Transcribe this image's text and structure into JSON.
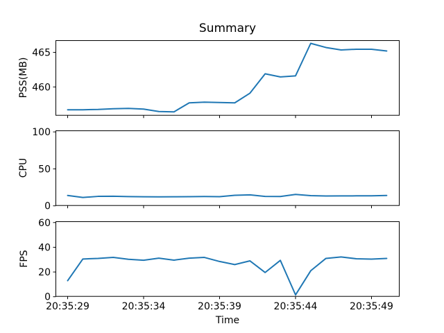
{
  "title": "Summary",
  "line_color": "#1f77b4",
  "background_color": "#ffffff",
  "spine_color": "#000000",
  "x": {
    "label": "Time",
    "tick_seconds": [
      29,
      34,
      39,
      44,
      49
    ],
    "tick_labels": [
      "20:35:29",
      "20:35:34",
      "20:35:39",
      "20:35:44",
      "20:35:49"
    ],
    "xlim": [
      28.2,
      50.85
    ]
  },
  "chart_data": [
    {
      "type": "line",
      "name": "PSS",
      "ylabel": "PSS(MB)",
      "yticks": [
        460,
        465
      ],
      "ylim": [
        455.85,
        466.75
      ],
      "grid": false,
      "legend": "none",
      "x_seconds": [
        29,
        30,
        31,
        32,
        33,
        34,
        35,
        36,
        37,
        38,
        39,
        40,
        41,
        42,
        43,
        44,
        45,
        46,
        47,
        48,
        49,
        50
      ],
      "values": [
        456.7,
        456.7,
        456.75,
        456.85,
        456.9,
        456.8,
        456.45,
        456.4,
        457.7,
        457.8,
        457.75,
        457.7,
        459.1,
        461.9,
        461.45,
        461.6,
        466.3,
        465.7,
        465.35,
        465.45,
        465.45,
        465.2
      ]
    },
    {
      "type": "line",
      "name": "CPU",
      "ylabel": "CPU",
      "yticks": [
        0,
        50,
        100
      ],
      "ylim": [
        0,
        102
      ],
      "grid": false,
      "legend": "none",
      "x_seconds": [
        29,
        30,
        31,
        32,
        33,
        34,
        35,
        36,
        37,
        38,
        39,
        40,
        41,
        42,
        43,
        44,
        45,
        46,
        47,
        48,
        49,
        50
      ],
      "values": [
        14.0,
        11.3,
        12.8,
        13.0,
        12.5,
        12.3,
        12.2,
        12.3,
        12.4,
        12.6,
        12.4,
        14.3,
        14.9,
        12.7,
        12.6,
        15.4,
        13.8,
        13.3,
        13.4,
        13.5,
        13.6,
        14.0
      ]
    },
    {
      "type": "line",
      "name": "FPS",
      "ylabel": "FPS",
      "yticks": [
        0,
        20,
        40,
        60
      ],
      "ylim": [
        0,
        61
      ],
      "grid": false,
      "legend": "none",
      "x_seconds": [
        29,
        30,
        31,
        32,
        33,
        34,
        35,
        36,
        37,
        38,
        39,
        40,
        41,
        42,
        43,
        44,
        45,
        46,
        47,
        48,
        49,
        50
      ],
      "values": [
        13.0,
        30.5,
        31.0,
        31.8,
        30.3,
        29.5,
        31.2,
        29.6,
        31.2,
        31.8,
        28.5,
        26.0,
        29.0,
        19.6,
        29.4,
        1.5,
        21.0,
        31.0,
        32.2,
        30.7,
        30.4,
        31.0
      ]
    }
  ]
}
